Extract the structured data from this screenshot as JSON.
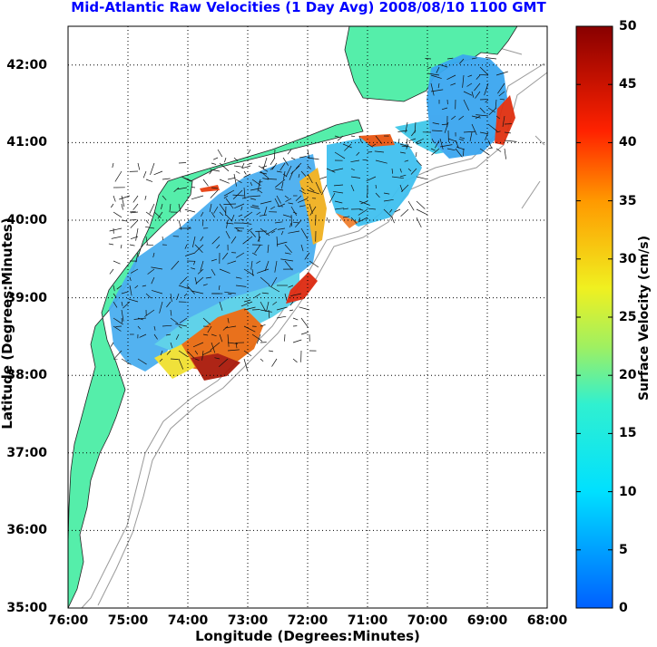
{
  "title": "Mid-Atlantic Raw Velocities (1 Day Avg) 2008/08/10 1100 GMT",
  "x_axis": {
    "label": "Longitude (Degrees:Minutes)",
    "ticks": [
      "76:00",
      "75:00",
      "74:00",
      "73:00",
      "72:00",
      "71:00",
      "70:00",
      "69:00",
      "68:00"
    ]
  },
  "y_axis": {
    "label": "Latitude (Degrees:Minutes)",
    "ticks": [
      "42:00",
      "41:00",
      "40:00",
      "39:00",
      "38:00",
      "37:00",
      "36:00",
      "35:00"
    ]
  },
  "colorbar": {
    "label": "Surface Velocity (cm/s)",
    "ticks": [
      "50",
      "45",
      "40",
      "35",
      "30",
      "25",
      "20",
      "15",
      "10",
      "5",
      "0"
    ],
    "range": [
      0,
      50
    ]
  },
  "colors": {
    "title": "#0000ff",
    "land": "#55eeaa",
    "bathymetry": "#999999",
    "grid": "#000000"
  },
  "map_extent": {
    "lon": [
      -76,
      -68
    ],
    "lat": [
      35,
      42.5
    ]
  }
}
